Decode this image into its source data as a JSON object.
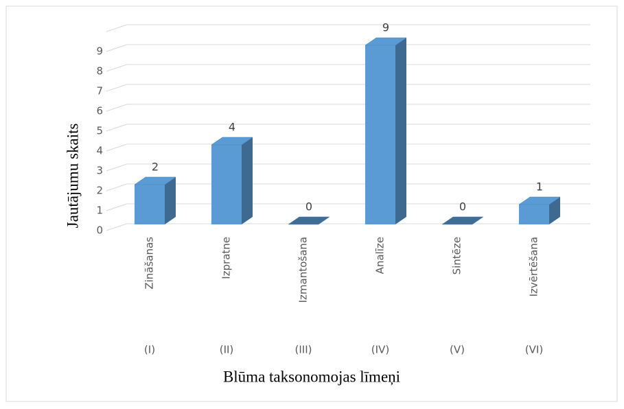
{
  "chart_data": {
    "type": "bar3d",
    "x_label": "Blūma taksonomojas līmeņi",
    "y_label": "Jautājumu skaits",
    "categories": [
      "Zināšanas",
      "Izpratne",
      "Izmantošana",
      "Analīze",
      "Sintēze",
      "Izvērtēšana"
    ],
    "subcategories": [
      "(I)",
      "(II)",
      "(III)",
      "(IV)",
      "(V)",
      "(VI)"
    ],
    "series": [
      {
        "name": "Jautājumu skaits",
        "color": "#5b9bd5",
        "values": [
          2,
          4,
          0,
          9,
          0,
          1
        ]
      }
    ],
    "ylim": [
      0,
      10
    ],
    "yticks": [
      0,
      1,
      2,
      3,
      4,
      5,
      6,
      7,
      8,
      9
    ],
    "grid": true,
    "data_labels": true
  }
}
